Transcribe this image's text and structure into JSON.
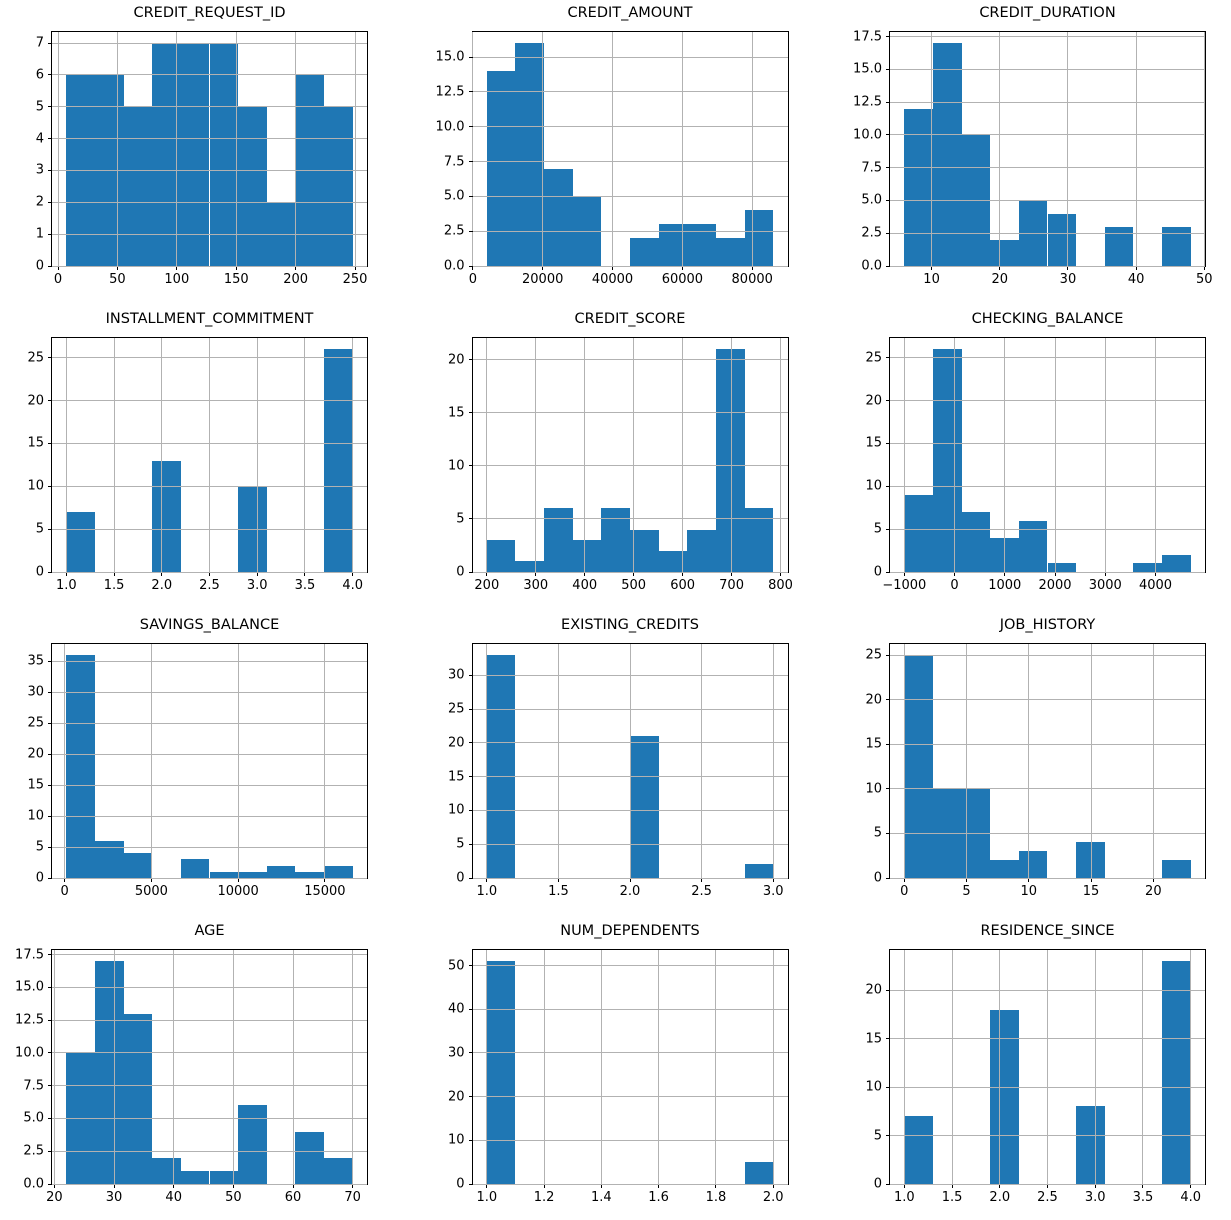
{
  "figure": {
    "bar_color": "#1f77b4",
    "grid_color": "#b2b2b2",
    "spine_color": "#000000",
    "background_color": "#ffffff",
    "layout": "4 rows x 3 columns of histograms",
    "total_records_per_histogram": 56
  },
  "chart_data": [
    {
      "type": "bar",
      "subtype": "histogram",
      "title": "CREDIT_REQUEST_ID",
      "grid": true,
      "legend": false,
      "bin_start": 7,
      "bin_end": 248,
      "values": [
        6,
        6,
        5,
        7,
        7,
        7,
        5,
        2,
        6,
        5
      ],
      "xticks": [
        0,
        50,
        100,
        150,
        200,
        250
      ],
      "xtick_labels": [
        "0",
        "50",
        "100",
        "150",
        "200",
        "250"
      ],
      "yticks": [
        0,
        1,
        2,
        3,
        4,
        5,
        6,
        7
      ],
      "ytick_labels": [
        "0",
        "1",
        "2",
        "3",
        "4",
        "5",
        "6",
        "7"
      ],
      "xlim": [
        -5.05,
        260.05
      ],
      "ylim": [
        0,
        7.35
      ]
    },
    {
      "type": "bar",
      "subtype": "histogram",
      "title": "CREDIT_AMOUNT",
      "grid": true,
      "legend": false,
      "bin_start": 4000,
      "bin_end": 86000,
      "values": [
        14,
        16,
        7,
        5,
        0,
        2,
        3,
        3,
        2,
        4
      ],
      "xticks": [
        0,
        20000,
        40000,
        60000,
        80000
      ],
      "xtick_labels": [
        "0",
        "20000",
        "40000",
        "60000",
        "80000"
      ],
      "yticks": [
        0,
        2.5,
        5,
        7.5,
        10,
        12.5,
        15
      ],
      "ytick_labels": [
        "0.0",
        "2.5",
        "5.0",
        "7.5",
        "10.0",
        "12.5",
        "15.0"
      ],
      "xlim": [
        -100,
        90100
      ],
      "ylim": [
        0,
        16.8
      ]
    },
    {
      "type": "bar",
      "subtype": "histogram",
      "title": "CREDIT_DURATION",
      "grid": true,
      "legend": false,
      "bin_start": 6,
      "bin_end": 48,
      "values": [
        12,
        17,
        10,
        2,
        5,
        4,
        0,
        3,
        0,
        3
      ],
      "xticks": [
        10,
        20,
        30,
        40,
        50
      ],
      "xtick_labels": [
        "10",
        "20",
        "30",
        "40",
        "50"
      ],
      "yticks": [
        0,
        2.5,
        5,
        7.5,
        10,
        12.5,
        15,
        17.5
      ],
      "ytick_labels": [
        "0.0",
        "2.5",
        "5.0",
        "7.5",
        "10.0",
        "12.5",
        "15.0",
        "17.5"
      ],
      "xlim": [
        3.9,
        50.1
      ],
      "ylim": [
        0,
        17.85
      ]
    },
    {
      "type": "bar",
      "subtype": "histogram",
      "title": "INSTALLMENT_COMMITMENT",
      "grid": true,
      "legend": false,
      "bin_start": 1,
      "bin_end": 4,
      "values": [
        7,
        0,
        0,
        13,
        0,
        0,
        10,
        0,
        0,
        26
      ],
      "xticks": [
        1,
        1.5,
        2,
        2.5,
        3,
        3.5,
        4
      ],
      "xtick_labels": [
        "1.0",
        "1.5",
        "2.0",
        "2.5",
        "3.0",
        "3.5",
        "4.0"
      ],
      "yticks": [
        0,
        5,
        10,
        15,
        20,
        25
      ],
      "ytick_labels": [
        "0",
        "5",
        "10",
        "15",
        "20",
        "25"
      ],
      "xlim": [
        0.85,
        4.15
      ],
      "ylim": [
        0,
        27.3
      ]
    },
    {
      "type": "bar",
      "subtype": "histogram",
      "title": "CREDIT_SCORE",
      "grid": true,
      "legend": false,
      "bin_start": 200,
      "bin_end": 785,
      "values": [
        3,
        1,
        6,
        3,
        6,
        4,
        2,
        4,
        21,
        6
      ],
      "xticks": [
        200,
        300,
        400,
        500,
        600,
        700,
        800
      ],
      "xtick_labels": [
        "200",
        "300",
        "400",
        "500",
        "600",
        "700",
        "800"
      ],
      "yticks": [
        0,
        5,
        10,
        15,
        20
      ],
      "ytick_labels": [
        "0",
        "5",
        "10",
        "15",
        "20"
      ],
      "xlim": [
        170.75,
        814.25
      ],
      "ylim": [
        0,
        22.05
      ]
    },
    {
      "type": "bar",
      "subtype": "histogram",
      "title": "CHECKING_BALANCE",
      "grid": true,
      "legend": false,
      "bin_start": -1000,
      "bin_end": 4700,
      "values": [
        9,
        26,
        7,
        4,
        6,
        1,
        0,
        0,
        1,
        2
      ],
      "xticks": [
        -1000,
        0,
        1000,
        2000,
        3000,
        4000
      ],
      "xtick_labels": [
        "−1000",
        "0",
        "1000",
        "2000",
        "3000",
        "4000"
      ],
      "yticks": [
        0,
        5,
        10,
        15,
        20,
        25
      ],
      "ytick_labels": [
        "0",
        "5",
        "10",
        "15",
        "20",
        "25"
      ],
      "xlim": [
        -1285,
        4985
      ],
      "ylim": [
        0,
        27.3
      ]
    },
    {
      "type": "bar",
      "subtype": "histogram",
      "title": "SAVINGS_BALANCE",
      "grid": true,
      "legend": false,
      "bin_start": 100,
      "bin_end": 16600,
      "values": [
        36,
        6,
        4,
        0,
        3,
        1,
        1,
        2,
        1,
        2
      ],
      "xticks": [
        0,
        5000,
        10000,
        15000
      ],
      "xtick_labels": [
        "0",
        "5000",
        "10000",
        "15000"
      ],
      "yticks": [
        0,
        5,
        10,
        15,
        20,
        25,
        30,
        35
      ],
      "ytick_labels": [
        "0",
        "5",
        "10",
        "15",
        "20",
        "25",
        "30",
        "35"
      ],
      "xlim": [
        -725,
        17425
      ],
      "ylim": [
        0,
        37.8
      ]
    },
    {
      "type": "bar",
      "subtype": "histogram",
      "title": "EXISTING_CREDITS",
      "grid": true,
      "legend": false,
      "bin_start": 1,
      "bin_end": 3,
      "values": [
        33,
        0,
        0,
        0,
        0,
        21,
        0,
        0,
        0,
        2
      ],
      "xticks": [
        1,
        1.5,
        2,
        2.5,
        3
      ],
      "xtick_labels": [
        "1.0",
        "1.5",
        "2.0",
        "2.5",
        "3.0"
      ],
      "yticks": [
        0,
        5,
        10,
        15,
        20,
        25,
        30
      ],
      "ytick_labels": [
        "0",
        "5",
        "10",
        "15",
        "20",
        "25",
        "30"
      ],
      "xlim": [
        0.9,
        3.1
      ],
      "ylim": [
        0,
        34.65
      ]
    },
    {
      "type": "bar",
      "subtype": "histogram",
      "title": "JOB_HISTORY",
      "grid": true,
      "legend": false,
      "bin_start": 0,
      "bin_end": 23,
      "values": [
        25,
        10,
        10,
        2,
        3,
        0,
        4,
        0,
        0,
        2
      ],
      "xticks": [
        0,
        5,
        10,
        15,
        20
      ],
      "xtick_labels": [
        "0",
        "5",
        "10",
        "15",
        "20"
      ],
      "yticks": [
        0,
        5,
        10,
        15,
        20,
        25
      ],
      "ytick_labels": [
        "0",
        "5",
        "10",
        "15",
        "20",
        "25"
      ],
      "xlim": [
        -1.15,
        24.15
      ],
      "ylim": [
        0,
        26.25
      ]
    },
    {
      "type": "bar",
      "subtype": "histogram",
      "title": "AGE",
      "grid": true,
      "legend": false,
      "bin_start": 22,
      "bin_end": 70,
      "values": [
        10,
        17,
        13,
        2,
        1,
        1,
        6,
        0,
        4,
        2
      ],
      "xticks": [
        20,
        30,
        40,
        50,
        60,
        70
      ],
      "xtick_labels": [
        "20",
        "30",
        "40",
        "50",
        "60",
        "70"
      ],
      "yticks": [
        0,
        2.5,
        5,
        7.5,
        10,
        12.5,
        15,
        17.5
      ],
      "ytick_labels": [
        "0.0",
        "2.5",
        "5.0",
        "7.5",
        "10.0",
        "12.5",
        "15.0",
        "17.5"
      ],
      "xlim": [
        19.6,
        72.4
      ],
      "ylim": [
        0,
        17.85
      ]
    },
    {
      "type": "bar",
      "subtype": "histogram",
      "title": "NUM_DEPENDENTS",
      "grid": true,
      "legend": false,
      "bin_start": 1,
      "bin_end": 2,
      "values": [
        51,
        0,
        0,
        0,
        0,
        0,
        0,
        0,
        0,
        5
      ],
      "xticks": [
        1,
        1.2,
        1.4,
        1.6,
        1.8,
        2
      ],
      "xtick_labels": [
        "1.0",
        "1.2",
        "1.4",
        "1.6",
        "1.8",
        "2.0"
      ],
      "yticks": [
        0,
        10,
        20,
        30,
        40,
        50
      ],
      "ytick_labels": [
        "0",
        "10",
        "20",
        "30",
        "40",
        "50"
      ],
      "xlim": [
        0.95,
        2.05
      ],
      "ylim": [
        0,
        53.55
      ]
    },
    {
      "type": "bar",
      "subtype": "histogram",
      "title": "RESIDENCE_SINCE",
      "grid": true,
      "legend": false,
      "bin_start": 1,
      "bin_end": 4,
      "values": [
        7,
        0,
        0,
        18,
        0,
        0,
        8,
        0,
        0,
        23
      ],
      "xticks": [
        1,
        1.5,
        2,
        2.5,
        3,
        3.5,
        4
      ],
      "xtick_labels": [
        "1.0",
        "1.5",
        "2.0",
        "2.5",
        "3.0",
        "3.5",
        "4.0"
      ],
      "yticks": [
        0,
        5,
        10,
        15,
        20
      ],
      "ytick_labels": [
        "0",
        "5",
        "10",
        "15",
        "20"
      ],
      "xlim": [
        0.85,
        4.15
      ],
      "ylim": [
        0,
        24.15
      ]
    }
  ]
}
